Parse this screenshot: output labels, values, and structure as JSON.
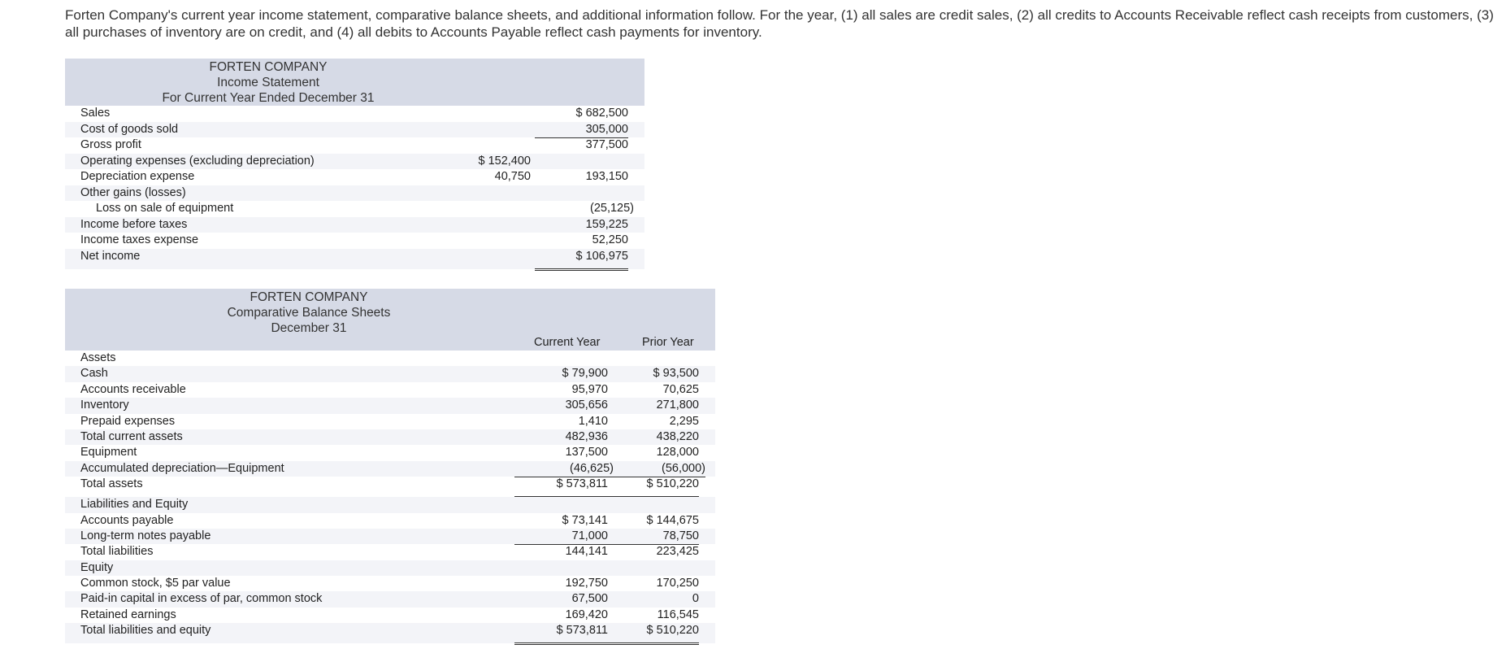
{
  "intro": "Forten Company's current year income statement, comparative balance sheets, and additional information follow. For the year, (1) all sales are credit sales, (2) all credits to Accounts Receivable reflect cash receipts from customers, (3) all purchases of inventory are on credit, and (4) all debits to Accounts Payable reflect cash payments for inventory.",
  "income": {
    "company": "FORTEN COMPANY",
    "title": "Income Statement",
    "period": "For Current Year Ended December 31",
    "rows": [
      {
        "label": "Sales",
        "mid": "",
        "right": "$ 682,500"
      },
      {
        "label": "Cost of goods sold",
        "mid": "",
        "right": "305,000"
      },
      {
        "label": "Gross profit",
        "mid": "",
        "right": "377,500"
      },
      {
        "label": "Operating expenses (excluding depreciation)",
        "mid": "$ 152,400",
        "right": ""
      },
      {
        "label": "Depreciation expense",
        "mid": "40,750",
        "right": "193,150"
      },
      {
        "label": "Other gains (losses)",
        "mid": "",
        "right": ""
      },
      {
        "label": "Loss on sale of equipment",
        "mid": "",
        "right": "(25,125)"
      },
      {
        "label": "Income before taxes",
        "mid": "",
        "right": "159,225"
      },
      {
        "label": "Income taxes expense",
        "mid": "",
        "right": "52,250"
      },
      {
        "label": "Net income",
        "mid": "",
        "right": "$ 106,975"
      }
    ]
  },
  "balance": {
    "company": "FORTEN COMPANY",
    "title": "Comparative Balance Sheets",
    "date": "December 31",
    "col_current": "Current Year",
    "col_prior": "Prior Year",
    "rows": [
      {
        "label": "Assets",
        "cur": "",
        "pri": ""
      },
      {
        "label": "Cash",
        "cur": "$ 79,900",
        "pri": "$ 93,500"
      },
      {
        "label": "Accounts receivable",
        "cur": "95,970",
        "pri": "70,625"
      },
      {
        "label": "Inventory",
        "cur": "305,656",
        "pri": "271,800"
      },
      {
        "label": "Prepaid expenses",
        "cur": "1,410",
        "pri": "2,295"
      },
      {
        "label": "Total current assets",
        "cur": "482,936",
        "pri": "438,220"
      },
      {
        "label": "Equipment",
        "cur": "137,500",
        "pri": "128,000"
      },
      {
        "label": "Accumulated depreciation—Equipment",
        "cur": "(46,625)",
        "pri": "(56,000)"
      },
      {
        "label": "Total assets",
        "cur": "$ 573,811",
        "pri": "$ 510,220"
      },
      {
        "label": "Liabilities and Equity",
        "cur": "",
        "pri": ""
      },
      {
        "label": "Accounts payable",
        "cur": "$ 73,141",
        "pri": "$ 144,675"
      },
      {
        "label": "Long-term notes payable",
        "cur": "71,000",
        "pri": "78,750"
      },
      {
        "label": "Total liabilities",
        "cur": "144,141",
        "pri": "223,425"
      },
      {
        "label": "Equity",
        "cur": "",
        "pri": ""
      },
      {
        "label": "Common stock, $5 par value",
        "cur": "192,750",
        "pri": "170,250"
      },
      {
        "label": "Paid-in capital in excess of par, common stock",
        "cur": "67,500",
        "pri": "0"
      },
      {
        "label": "Retained earnings",
        "cur": "169,420",
        "pri": "116,545"
      },
      {
        "label": "Total liabilities and equity",
        "cur": "$ 573,811",
        "pri": "$ 510,220"
      }
    ]
  }
}
